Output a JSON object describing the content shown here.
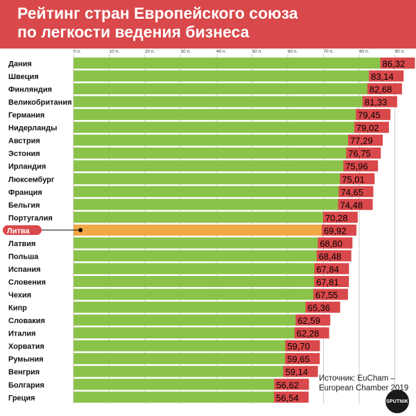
{
  "header": {
    "title_line1": "Рейтинг стран Европейского союза",
    "title_line2": "по легкости ведения бизнеса"
  },
  "source": {
    "line1": "Источник: EuCham –",
    "line2": "European Chamber 2019"
  },
  "logo": {
    "text": "SPUTNIK"
  },
  "colors": {
    "header_bg": "#d9484a",
    "bar_green": "#8bc34a",
    "bar_highlight": "#f0a845",
    "label_red": "#d9484a",
    "highlight_label_bg": "#d9484a"
  },
  "chart_data": {
    "type": "bar",
    "orientation": "horizontal",
    "xlim": [
      0,
      95
    ],
    "ticks": [
      0,
      10,
      20,
      30,
      40,
      50,
      60,
      70,
      80,
      90
    ],
    "tick_labels": [
      "0 п.",
      "10 п.",
      "20 п.",
      "30 п.",
      "40 п.",
      "50 п.",
      "60 п.",
      "70 п.",
      "80 п.",
      "90 п."
    ],
    "grid": true,
    "highlight": "Литва",
    "categories": [
      "Дания",
      "Швеция",
      "Финляндия",
      "Великобритания",
      "Германия",
      "Нидерланды",
      "Австрия",
      "Эстония",
      "Ирландия",
      "Люксембург",
      "Франция",
      "Бельгия",
      "Португалия",
      "Литва",
      "Латвия",
      "Польша",
      "Испания",
      "Словения",
      "Чехия",
      "Кипр",
      "Словакия",
      "Италия",
      "Хорватия",
      "Румыния",
      "Венгрия",
      "Болгария",
      "Греция"
    ],
    "values": [
      86.32,
      83.14,
      82.68,
      81.33,
      79.45,
      79.02,
      77.29,
      76.75,
      75.96,
      75.01,
      74.65,
      74.48,
      70.28,
      69.92,
      68.8,
      68.48,
      67.84,
      67.81,
      67.55,
      65.36,
      62.59,
      62.28,
      59.7,
      59.65,
      59.14,
      56.62,
      56.54
    ],
    "value_labels": [
      "86,32",
      "83,14",
      "82,68",
      "81,33",
      "79,45",
      "79,02",
      "77,29",
      "76,75",
      "75,96",
      "75,01",
      "74,65",
      "74,48",
      "70,28",
      "69,92",
      "68,80",
      "68,48",
      "67,84",
      "67,81",
      "67,55",
      "65,36",
      "62,59",
      "62,28",
      "59,70",
      "59,65",
      "59,14",
      "56,62",
      "56,54"
    ]
  }
}
